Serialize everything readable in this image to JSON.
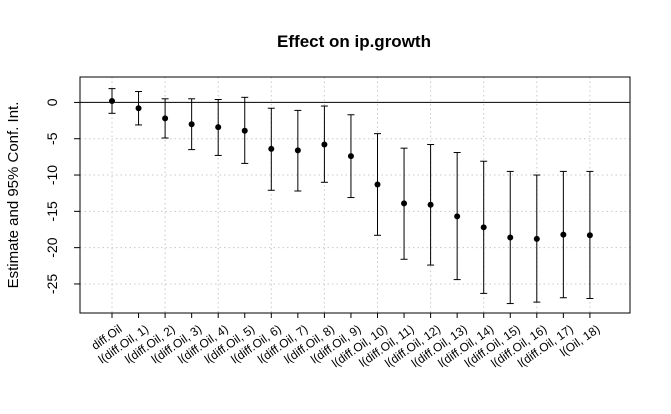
{
  "chart_data": {
    "type": "scatter",
    "title": "Effect on ip.growth",
    "xlabel": "",
    "ylabel": "Estimate and 95% Conf. Int.",
    "ylim": [
      -29,
      3.5
    ],
    "yticks": [
      0,
      -5,
      -10,
      -15,
      -20,
      -25
    ],
    "grid": true,
    "reference_line": 0,
    "categories": [
      "diff.Oil",
      "l(diff.Oil, 1)",
      "l(diff.Oil, 2)",
      "l(diff.Oil, 3)",
      "l(diff.Oil, 4)",
      "l(diff.Oil, 5)",
      "l(diff.Oil, 6)",
      "l(diff.Oil, 7)",
      "l(diff.Oil, 8)",
      "l(diff.Oil, 9)",
      "l(diff.Oil, 10)",
      "l(diff.Oil, 11)",
      "l(diff.Oil, 12)",
      "l(diff.Oil, 13)",
      "l(diff.Oil, 14)",
      "l(diff.Oil, 15)",
      "l(diff.Oil, 16)",
      "l(diff.Oil, 17)",
      "l(Oil, 18)"
    ],
    "estimate": [
      0.2,
      -0.8,
      -2.2,
      -3.0,
      -3.4,
      -3.9,
      -6.4,
      -6.6,
      -5.8,
      -7.4,
      -11.3,
      -13.9,
      -14.1,
      -15.7,
      -17.2,
      -18.6,
      -18.8,
      -18.2,
      -18.3
    ],
    "lower": [
      -1.5,
      -3.1,
      -4.9,
      -6.5,
      -7.3,
      -8.4,
      -12.1,
      -12.2,
      -11.0,
      -13.1,
      -18.3,
      -21.6,
      -22.4,
      -24.4,
      -26.3,
      -27.7,
      -27.5,
      -26.9,
      -27.0
    ],
    "upper": [
      1.9,
      1.5,
      0.5,
      0.5,
      0.4,
      0.7,
      -0.8,
      -1.1,
      -0.5,
      -1.7,
      -4.3,
      -6.3,
      -5.8,
      -6.9,
      -8.1,
      -9.5,
      -10.0,
      -9.5,
      -9.5
    ]
  }
}
